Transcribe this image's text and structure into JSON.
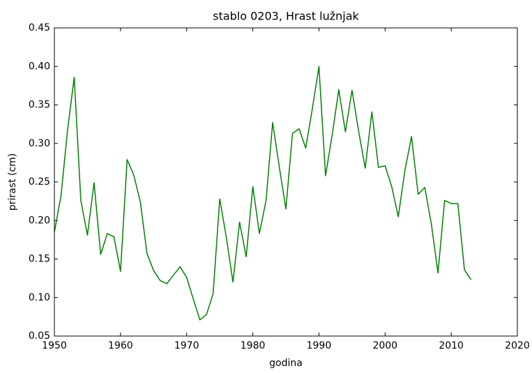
{
  "chart_data": {
    "type": "line",
    "title": "stablo 0203, Hrast lužnjak",
    "xlabel": "godina",
    "ylabel": "prirast (cm)",
    "color": "#008000",
    "x": [
      1950,
      1951,
      1952,
      1953,
      1954,
      1955,
      1956,
      1957,
      1958,
      1959,
      1960,
      1961,
      1962,
      1963,
      1964,
      1965,
      1966,
      1967,
      1968,
      1969,
      1970,
      1971,
      1972,
      1973,
      1974,
      1975,
      1976,
      1977,
      1978,
      1979,
      1980,
      1981,
      1982,
      1983,
      1984,
      1985,
      1986,
      1987,
      1988,
      1989,
      1990,
      1991,
      1992,
      1993,
      1994,
      1995,
      1996,
      1997,
      1998,
      1999,
      2000,
      2001,
      2002,
      2003,
      2004,
      2005,
      2006,
      2007,
      2008,
      2009,
      2010,
      2011,
      2012,
      2013
    ],
    "values": [
      0.185,
      0.232,
      0.318,
      0.386,
      0.226,
      0.181,
      0.249,
      0.156,
      0.183,
      0.179,
      0.134,
      0.279,
      0.259,
      0.224,
      0.157,
      0.135,
      0.122,
      0.118,
      0.129,
      0.14,
      0.126,
      0.098,
      0.071,
      0.078,
      0.105,
      0.228,
      0.178,
      0.12,
      0.198,
      0.153,
      0.244,
      0.183,
      0.226,
      0.327,
      0.27,
      0.215,
      0.313,
      0.319,
      0.294,
      0.345,
      0.4,
      0.258,
      0.311,
      0.37,
      0.315,
      0.369,
      0.316,
      0.268,
      0.341,
      0.269,
      0.271,
      0.244,
      0.205,
      0.265,
      0.309,
      0.234,
      0.243,
      0.195,
      0.132,
      0.226,
      0.222,
      0.222,
      0.136,
      0.123
    ],
    "xlim": [
      1950,
      2020
    ],
    "xticks": [
      1950,
      1960,
      1970,
      1980,
      1990,
      2000,
      2010,
      2020
    ],
    "ylim": [
      0.05,
      0.45
    ],
    "yticks": [
      {
        "value": 0.05,
        "label": "0.05"
      },
      {
        "value": 0.1,
        "label": "0.10"
      },
      {
        "value": 0.15,
        "label": "0.15"
      },
      {
        "value": 0.2,
        "label": "0.20"
      },
      {
        "value": 0.25,
        "label": "0.25"
      },
      {
        "value": 0.3,
        "label": "0.30"
      },
      {
        "value": 0.35,
        "label": "0.35"
      },
      {
        "value": 0.4,
        "label": "0.40"
      },
      {
        "value": 0.45,
        "label": "0.45"
      }
    ],
    "grid": false
  }
}
